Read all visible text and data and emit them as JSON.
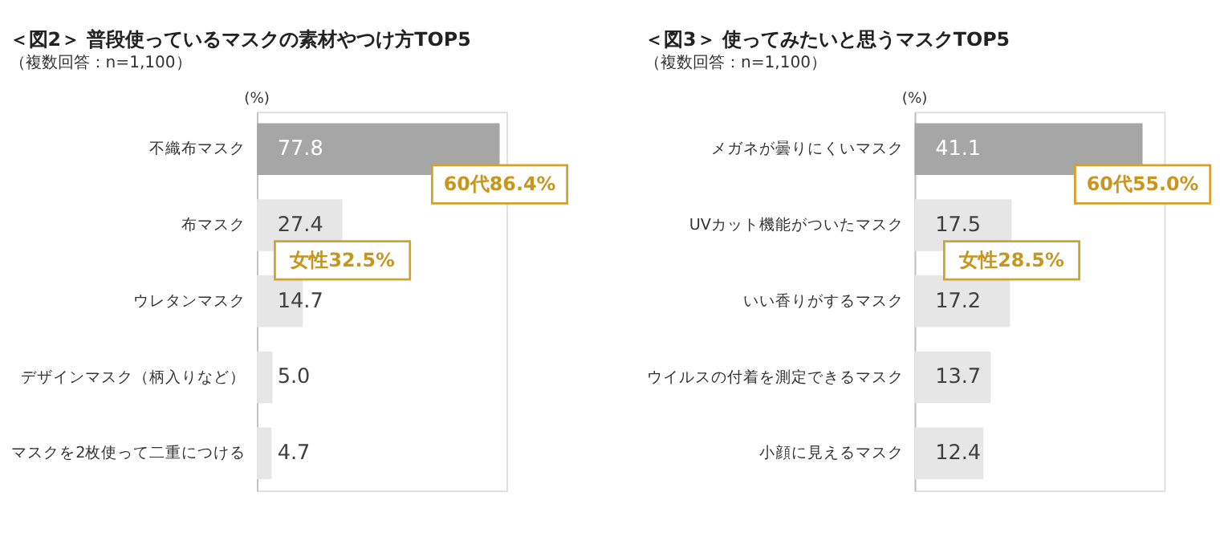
{
  "chart_data": [
    {
      "type": "bar",
      "orientation": "horizontal",
      "title": "＜図2＞ 普段使っているマスクの素材やつけ方TOP5",
      "subtitle": "（複数回答：n=1,100）",
      "xlabel": "(%)",
      "categories": [
        "不織布マスク",
        "布マスク",
        "ウレタンマスク",
        "デザインマスク（柄入りなど）",
        "マスクを2枚使って二重につける"
      ],
      "values": [
        77.8,
        27.4,
        14.7,
        5.0,
        4.7
      ],
      "value_labels": [
        "77.8",
        "27.4",
        "14.7",
        "5.0",
        "4.7"
      ],
      "colors": [
        "#a6a6a6",
        "#e6e6e6",
        "#e6e6e6",
        "#e6e6e6",
        "#e6e6e6"
      ],
      "annotations": [
        "60代86.4%",
        "女性32.5%"
      ],
      "tick_labels": "y",
      "grid": false
    },
    {
      "type": "bar",
      "orientation": "horizontal",
      "title": "＜図3＞ 使ってみたいと思うマスクTOP5",
      "subtitle": "（複数回答：n=1,100）",
      "xlabel": "(%)",
      "categories": [
        "メガネが曇りにくいマスク",
        "UVカット機能がついたマスク",
        "いい香りがするマスク",
        "ウイルスの付着を測定できるマスク",
        "小顔に見えるマスク"
      ],
      "values": [
        41.1,
        17.5,
        17.2,
        13.7,
        12.4
      ],
      "value_labels": [
        "41.1",
        "17.5",
        "17.2",
        "13.7",
        "12.4"
      ],
      "colors": [
        "#a6a6a6",
        "#e6e6e6",
        "#e6e6e6",
        "#e6e6e6",
        "#e6e6e6"
      ],
      "annotations": [
        "60代55.0%",
        "女性28.5%"
      ],
      "tick_labels": "y",
      "grid": false
    }
  ]
}
